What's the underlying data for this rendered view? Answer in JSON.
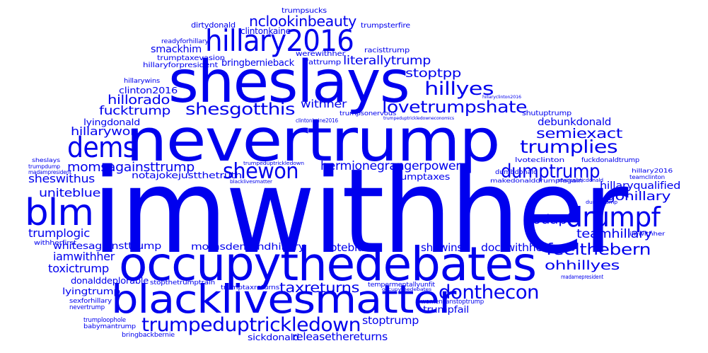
{
  "word_cloud": {
    "color": "#0000ee",
    "words": [
      {
        "id": "imwithher",
        "text": "imwithher"
      },
      {
        "id": "nevertrump",
        "text": "nevertrump"
      },
      {
        "id": "sheslays",
        "text": "sheslays"
      },
      {
        "id": "occupythedebates",
        "text": "occupythedebates"
      },
      {
        "id": "blacklivesmatter",
        "text": "blacklivesmatter"
      },
      {
        "id": "hillary2016",
        "text": "hillary2016"
      },
      {
        "id": "blm",
        "text": "blm"
      },
      {
        "id": "drumpf",
        "text": "drumpf"
      },
      {
        "id": "dems",
        "text": "dems"
      },
      {
        "id": "shewon",
        "text": "shewon"
      },
      {
        "id": "trumpeduptrickledown",
        "text": "trumpeduptrickledown"
      },
      {
        "id": "trumplies",
        "text": "trumplies"
      },
      {
        "id": "dumptrump",
        "text": "dumptrump"
      },
      {
        "id": "donthecon",
        "text": "donthecon"
      },
      {
        "id": "feelthebern",
        "text": "feelthebern"
      },
      {
        "id": "lovetrumpshate",
        "text": "lovetrumpshate"
      },
      {
        "id": "hillyes",
        "text": "hillyes"
      },
      {
        "id": "shesgotthis",
        "text": "shesgotthis"
      },
      {
        "id": "semiexact",
        "text": "semiexact"
      },
      {
        "id": "nclookinbeauty",
        "text": "nclookinbeauty"
      },
      {
        "id": "taxreturns",
        "text": "taxreturns"
      },
      {
        "id": "ohhillyes",
        "text": "ohhillyes"
      },
      {
        "id": "nodapl",
        "text": "nodapl"
      },
      {
        "id": "gohillary",
        "text": "gohillary"
      },
      {
        "id": "teamhillary",
        "text": "teamhillary"
      },
      {
        "id": "hermionegrangerpower",
        "text": "hermionegrangerpower"
      },
      {
        "id": "momsagainsttrump",
        "text": "momsagainsttrump"
      },
      {
        "id": "literallytrump",
        "text": "literallytrump"
      },
      {
        "id": "stoptpp",
        "text": "stoptpp"
      },
      {
        "id": "hillorado",
        "text": "hillorado"
      },
      {
        "id": "fucktrump",
        "text": "fucktrump"
      },
      {
        "id": "hillarywon",
        "text": "hillarywon"
      },
      {
        "id": "sheswithus",
        "text": "sheswithus"
      },
      {
        "id": "uniteblue",
        "text": "uniteblue"
      },
      {
        "id": "trumplogic",
        "text": "trumplogic"
      },
      {
        "id": "iamwithher",
        "text": "iamwithher"
      },
      {
        "id": "toxictrump",
        "text": "toxictrump"
      },
      {
        "id": "smackhim",
        "text": "smackhim"
      },
      {
        "id": "stoptrump",
        "text": "stoptrump"
      },
      {
        "id": "releasethereturns",
        "text": "releasethereturns"
      },
      {
        "id": "docswithher",
        "text": "docswithher"
      },
      {
        "id": "voteblue",
        "text": "voteblue"
      },
      {
        "id": "shewins",
        "text": "shewins"
      },
      {
        "id": "withher",
        "text": "withher"
      },
      {
        "id": "debunkdonald",
        "text": "debunkdonald"
      },
      {
        "id": "hillaryqualified",
        "text": "hillaryqualified"
      },
      {
        "id": "whitesagainsttrump",
        "text": "whitesagainsttrump"
      },
      {
        "id": "momsdemandhillary",
        "text": "momsdemandhillary"
      },
      {
        "id": "bringbernieback",
        "text": "bringbernieback"
      },
      {
        "id": "notajokejustthetruth",
        "text": "notajokejustthetruth"
      },
      {
        "id": "trumpfail",
        "text": "trumpfail"
      },
      {
        "id": "lyingdonald",
        "text": "lyingdonald"
      },
      {
        "id": "clinton2016",
        "text": "clinton2016"
      },
      {
        "id": "trumptaxes",
        "text": "trumptaxes"
      },
      {
        "id": "donalddeplorable",
        "text": "donalddeplorable"
      },
      {
        "id": "lyingtrump",
        "text": "lyingtrump"
      },
      {
        "id": "sickdonald",
        "text": "sickdonald"
      },
      {
        "id": "clintonkaine",
        "text": "clintonkaine"
      },
      {
        "id": "dirtydonald",
        "text": "dirtydonald"
      },
      {
        "id": "trumpsucks",
        "text": "trumpsucks"
      },
      {
        "id": "trumpsterfire",
        "text": "trumpsterfire"
      },
      {
        "id": "racisttrump",
        "text": "racisttrump"
      },
      {
        "id": "werewithher",
        "text": "werewithher"
      },
      {
        "id": "fattrump",
        "text": "fattrump"
      },
      {
        "id": "trumptaxevasion",
        "text": "trumptaxevasion"
      },
      {
        "id": "hillaryforpresident",
        "text": "hillaryforpresident"
      },
      {
        "id": "readyforhillary",
        "text": "readyforhillary"
      },
      {
        "id": "hillarywins",
        "text": "hillarywins"
      },
      {
        "id": "shutuptrump",
        "text": "shutuptrump"
      },
      {
        "id": "trumpsonervous",
        "text": "trumpsonervous"
      },
      {
        "id": "clintonkaine2016",
        "text": "clintonkaine2016"
      },
      {
        "id": "lvoteclinton",
        "text": "lvoteclinton"
      },
      {
        "id": "dumbdonald",
        "text": "dumbdonald"
      },
      {
        "id": "makedonalddrumpfagain",
        "text": "makedonalddrumpfagain"
      },
      {
        "id": "narcissisticdonald",
        "text": "narcissisticdonald"
      },
      {
        "id": "fuckdonaldtrump",
        "text": "fuckdonaldtrump"
      },
      {
        "id": "hillary2016b",
        "text": "hillary2016"
      },
      {
        "id": "teamclinton",
        "text": "teamclinton"
      },
      {
        "id": "dumptrumpb",
        "text": "dumptrump"
      },
      {
        "id": "imwithherb",
        "text": "imwithher"
      },
      {
        "id": "madamepresident",
        "text": "madamepresident"
      },
      {
        "id": "madampresident",
        "text": "madampresident"
      },
      {
        "id": "womencanstoptrump",
        "text": "womencanstoptrump"
      },
      {
        "id": "tempermentallyunfit",
        "text": "tempermentallyunfit"
      },
      {
        "id": "occupythedebatesb",
        "text": "occupythedebates"
      },
      {
        "id": "trumptaxreturns",
        "text": "trumptaxreturns"
      },
      {
        "id": "stopthetrumptrain",
        "text": "stopthetrumptrain"
      },
      {
        "id": "withherfirst",
        "text": "withherfirst"
      },
      {
        "id": "sexforhillary",
        "text": "sexforhillary"
      },
      {
        "id": "nevertrumpb",
        "text": "nevertrump"
      },
      {
        "id": "trumploophole",
        "text": "trumploophole"
      },
      {
        "id": "babymantrump",
        "text": "babymantrump"
      },
      {
        "id": "bringbackbernie",
        "text": "bringbackbernie"
      },
      {
        "id": "sheslaysb",
        "text": "sheslays"
      },
      {
        "id": "trumpdump",
        "text": "trumpdump"
      },
      {
        "id": "blacklivesmatterb",
        "text": "blacklivesmatter"
      },
      {
        "id": "trumpeduptrickledownb",
        "text": "trumpeduptrickledown"
      },
      {
        "id": "trumpeduptrickledowneconomics",
        "text": "trumpeduptrickledowneconomics"
      },
      {
        "id": "hillaryclinton2016",
        "text": "hillaryclinton2016"
      }
    ]
  }
}
